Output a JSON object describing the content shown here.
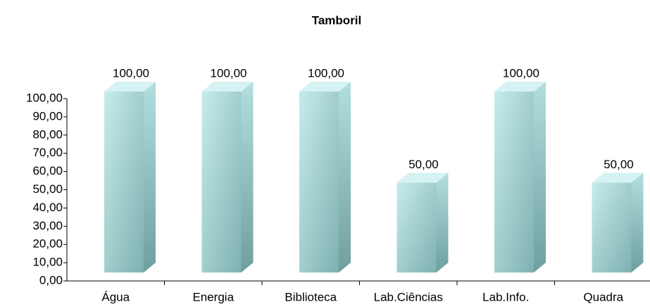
{
  "chart_data": {
    "type": "bar3d",
    "title": "Tamboril",
    "categories": [
      "Água",
      "Energia",
      "Biblioteca",
      "Lab.Ciências",
      "Lab.Info.",
      "Quadra"
    ],
    "values": [
      100,
      100,
      100,
      50,
      100,
      50
    ],
    "value_labels": [
      "100,00",
      "100,00",
      "100,00",
      "50,00",
      "100,00",
      "50,00"
    ],
    "color": "#a8d8d8",
    "ylim": [
      0,
      100
    ],
    "yticks": [
      {
        "value": 0,
        "label": "0,00"
      },
      {
        "value": 10,
        "label": "10,00"
      },
      {
        "value": 20,
        "label": "20,00"
      },
      {
        "value": 30,
        "label": "30,00"
      },
      {
        "value": 40,
        "label": "40,00"
      },
      {
        "value": 50,
        "label": "50,00"
      },
      {
        "value": 60,
        "label": "60,00"
      },
      {
        "value": 70,
        "label": "70,00"
      },
      {
        "value": 80,
        "label": "80,00"
      },
      {
        "value": 90,
        "label": "90,00"
      },
      {
        "value": 100,
        "label": "100,00"
      }
    ]
  }
}
